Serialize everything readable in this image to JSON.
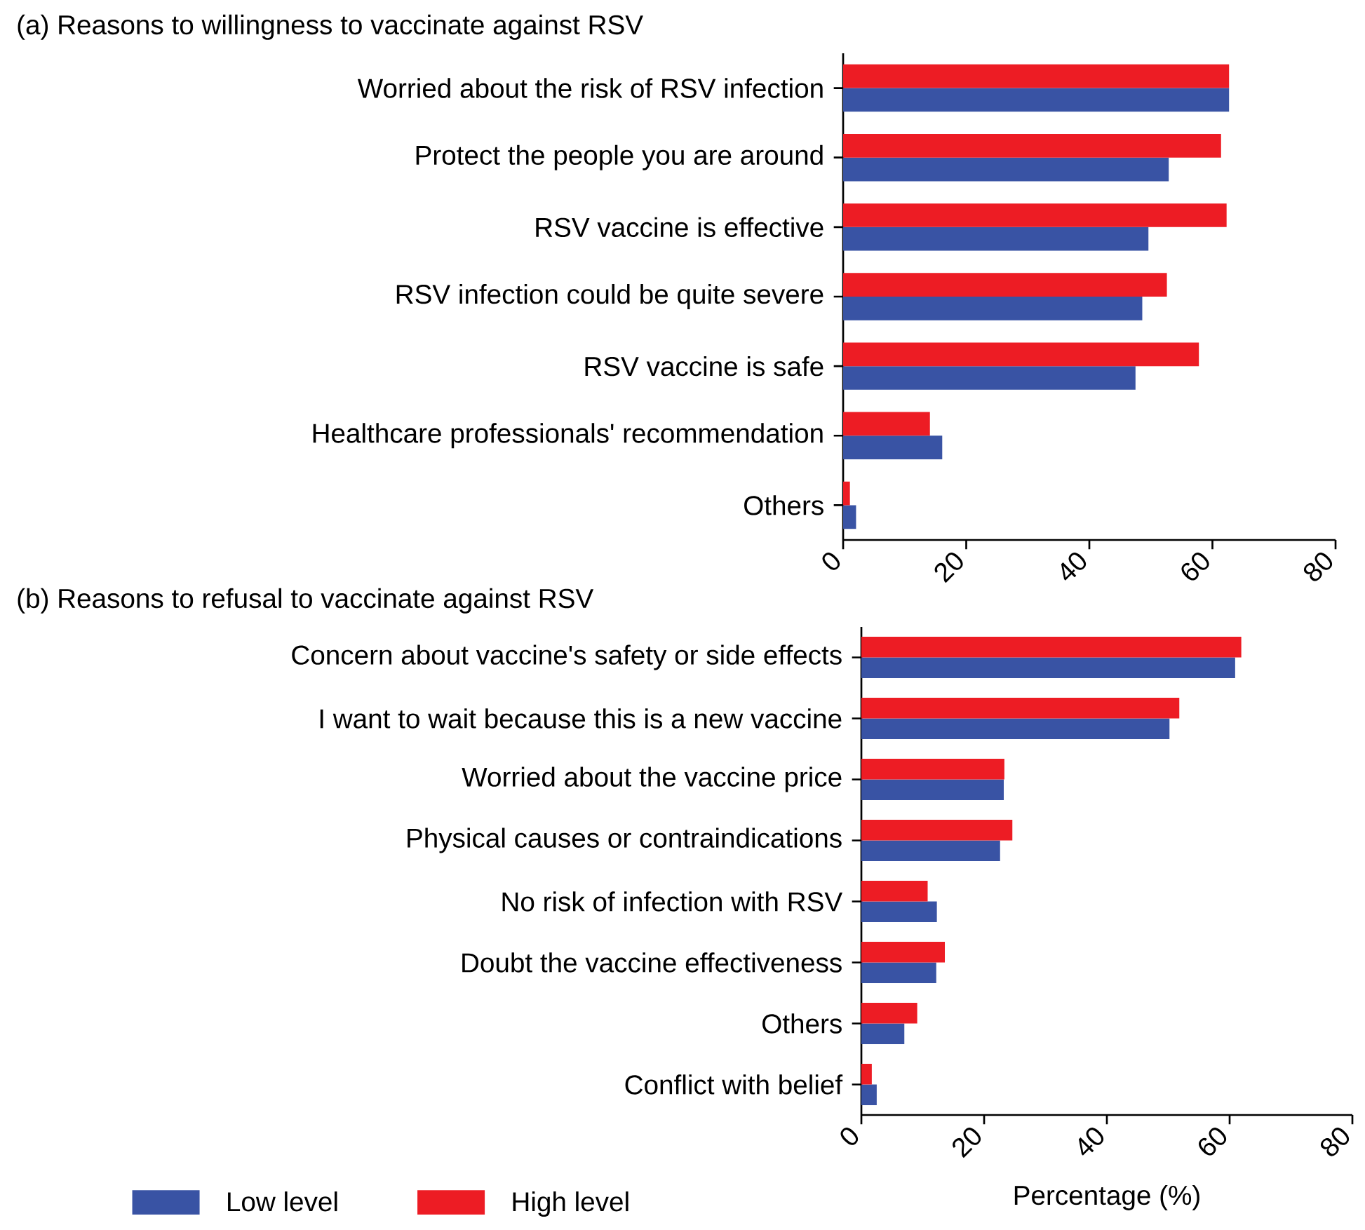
{
  "chart_data": [
    {
      "type": "bar",
      "orientation": "horizontal",
      "title": "(a)  Reasons to willingness to vaccinate against RSV",
      "categories": [
        "Worried about the risk of RSV infection",
        "Protect the people you are around",
        "RSV vaccine is effective",
        "RSV infection could be quite severe",
        "RSV vaccine is safe",
        "Healthcare professionals' recommendation",
        "Others"
      ],
      "series": [
        {
          "color": "#3953a4",
          "values": [
            62.7,
            52.9,
            49.6,
            48.6,
            47.5,
            16.1,
            2.1
          ]
        },
        {
          "color": "#ed1c24",
          "values": [
            62.7,
            61.4,
            62.3,
            52.6,
            57.8,
            14.1,
            1.1
          ]
        }
      ],
      "xlim": [
        0,
        80
      ],
      "xticks": [
        0,
        20,
        40,
        60,
        80
      ],
      "grid": false
    },
    {
      "type": "bar",
      "orientation": "horizontal",
      "title": "(b)  Reasons to refusal to vaccinate against RSV",
      "xlabel": "Percentage (%)",
      "categories": [
        "Concern about vaccine's safety or side effects",
        "I want to wait because this is a new vaccine",
        "Worried about the vaccine price",
        "Physical causes or contraindications",
        "No risk of infection with RSV",
        "Doubt the vaccine effectiveness",
        "Others",
        "Conflict with belief"
      ],
      "series": [
        {
          "name": "Low level",
          "color": "#3953a4",
          "values": [
            60.9,
            50.2,
            23.2,
            22.6,
            12.3,
            12.2,
            7.0,
            2.5
          ]
        },
        {
          "name": "High level",
          "color": "#ed1c24",
          "values": [
            61.9,
            51.8,
            23.3,
            24.6,
            10.8,
            13.6,
            9.1,
            1.7
          ]
        }
      ],
      "xlim": [
        0,
        80
      ],
      "xticks": [
        0,
        20,
        40,
        60,
        80
      ],
      "grid": false,
      "legend": "bottom left"
    }
  ]
}
